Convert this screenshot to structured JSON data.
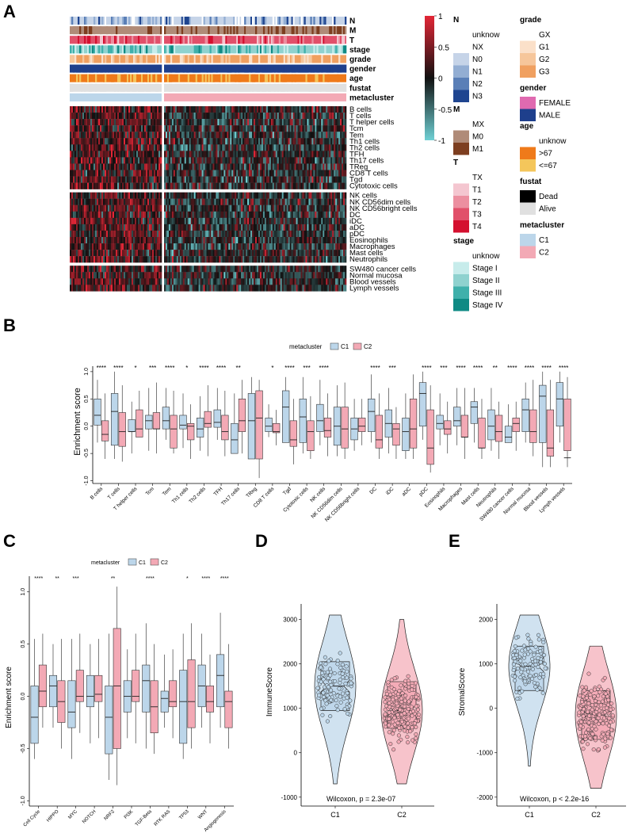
{
  "panels": {
    "A": {
      "label": "A",
      "annotation_tracks": [
        "N",
        "M",
        "T",
        "stage",
        "grade",
        "gender",
        "age",
        "fustat",
        "metacluster"
      ],
      "row_groups": [
        [
          "B cells",
          "T cells",
          "T helper cells",
          "Tcm",
          "Tem",
          "Th1 cells",
          "Th2 cells",
          "TFH",
          "Th17 cells",
          "TReg",
          "CD8 T cells",
          "Tgd",
          "Cytotoxic cells"
        ],
        [
          "NK cells",
          "NK CD56dim cells",
          "NK CD56bright cells",
          "DC",
          "iDC",
          "aDC",
          "pDC",
          "Eosinophils",
          "Macrophages",
          "Mast cells",
          "Neutrophils"
        ],
        [
          "SW480 cancer cells",
          "Normal mucosa",
          "Blood vessels",
          "Lymph vessels"
        ]
      ],
      "colorbar": {
        "ticks": [
          "1",
          "0.5",
          "0",
          "-0.5",
          "-1"
        ],
        "high": "#e32636",
        "mid": "#111111",
        "low": "#6fd0d4"
      },
      "legend_col1": [
        {
          "title": "N",
          "items": [
            {
              "label": "unknow",
              "color": "#ffffff"
            },
            {
              "label": "NX",
              "color": "#ffffff"
            },
            {
              "label": "N0",
              "color": "#c6d4e8"
            },
            {
              "label": "N1",
              "color": "#93aed3"
            },
            {
              "label": "N2",
              "color": "#5a7fb7"
            },
            {
              "label": "N3",
              "color": "#1f4590"
            }
          ]
        },
        {
          "title": "M",
          "items": [
            {
              "label": "MX",
              "color": "#ffffff"
            },
            {
              "label": "M0",
              "color": "#b08b78"
            },
            {
              "label": "M1",
              "color": "#7d3e20"
            }
          ]
        },
        {
          "title": "T",
          "items": [
            {
              "label": "TX",
              "color": "#ffffff"
            },
            {
              "label": "T1",
              "color": "#f4c6d0"
            },
            {
              "label": "T2",
              "color": "#ec8fa0"
            },
            {
              "label": "T3",
              "color": "#e1506a"
            },
            {
              "label": "T4",
              "color": "#d4102f"
            }
          ]
        },
        {
          "title": "stage",
          "items": [
            {
              "label": "unknow",
              "color": "#ffffff"
            },
            {
              "label": "Stage I",
              "color": "#c7eceb"
            },
            {
              "label": "Stage II",
              "color": "#8fd2cf"
            },
            {
              "label": "Stage III",
              "color": "#3fb0ab"
            },
            {
              "label": "Stage IV",
              "color": "#0f8a84"
            }
          ]
        }
      ],
      "legend_col2": [
        {
          "title": "grade",
          "items": [
            {
              "label": "GX",
              "color": "#ffffff"
            },
            {
              "label": "G1",
              "color": "#fbe0c9"
            },
            {
              "label": "G2",
              "color": "#f6c69b"
            },
            {
              "label": "G3",
              "color": "#f0a060"
            }
          ]
        },
        {
          "title": "gender",
          "items": [
            {
              "label": "FEMALE",
              "color": "#e06ab0"
            },
            {
              "label": "MALE",
              "color": "#1e3f8c"
            }
          ]
        },
        {
          "title": "age",
          "items": [
            {
              "label": "unknow",
              "color": "#ffffff"
            },
            {
              "label": ">67",
              "color": "#ef7a1a"
            },
            {
              "label": "<=67",
              "color": "#f4c65b"
            }
          ]
        },
        {
          "title": "fustat",
          "items": [
            {
              "label": "Dead",
              "color": "#000000"
            },
            {
              "label": "Alive",
              "color": "#e0e0e0"
            }
          ]
        },
        {
          "title": "metacluster",
          "items": [
            {
              "label": "C1",
              "color": "#bcd6ea"
            },
            {
              "label": "C2",
              "color": "#f3a9b5"
            }
          ]
        }
      ]
    },
    "B": {
      "label": "B",
      "legend_title": "metacluster",
      "legend_c1": "C1",
      "legend_c2": "C2",
      "ylabel": "Enrichment score"
    },
    "C": {
      "label": "C",
      "legend_title": "metacluster",
      "legend_c1": "C1",
      "legend_c2": "C2",
      "ylabel": "Enrichment score"
    },
    "D": {
      "label": "D",
      "ylabel": "ImmuneScore",
      "stat": "Wilcoxon, p = 2.3e-07"
    },
    "E": {
      "label": "E",
      "ylabel": "StromalScore",
      "stat": "Wilcoxon, p < 2.2e-16"
    }
  },
  "chart_data": [
    {
      "type": "box",
      "panel": "B",
      "ylabel": "Enrichment score",
      "ylim": [
        -1.05,
        1.1
      ],
      "yticks": [
        -1.0,
        -0.5,
        0.0,
        0.5,
        1.0
      ],
      "series_names": [
        "C1",
        "C2"
      ],
      "series_colors": [
        "#bcd6ea",
        "#f3a9b5"
      ],
      "categories": [
        "B cells",
        "T cells",
        "T helper cells",
        "Tcm",
        "Tem",
        "Th1 cells",
        "Th2 cells",
        "TFH",
        "Th17 cells",
        "TReg",
        "CD8 T cells",
        "Tgd",
        "Cytotoxic cells",
        "NK cells",
        "NK CD56dim cells",
        "NK CD56bright cells",
        "DC",
        "iDC",
        "aDC",
        "pDC",
        "Eosinophils",
        "Macrophages",
        "Mast cells",
        "Neutrophils",
        "SW480 cancer cells",
        "Normal mucosa",
        "Blood vessels",
        "Lymph vessels"
      ],
      "significance": [
        "****",
        "****",
        "*",
        "***",
        "****",
        "*",
        "****",
        "****",
        "**",
        "",
        "*",
        "****",
        "***",
        "****",
        "",
        "",
        "****",
        "***",
        "",
        "****",
        "***",
        "****",
        "****",
        "**",
        "****",
        "****",
        "****",
        "****"
      ],
      "boxes": [
        [
          [
            -0.3,
            0.02,
            0.2,
            0.5,
            0.85
          ],
          [
            -0.6,
            -0.27,
            -0.15,
            0.1,
            0.6
          ]
        ],
        [
          [
            -0.6,
            -0.35,
            0.27,
            0.6,
            1.0
          ],
          [
            -0.65,
            -0.37,
            -0.1,
            0.25,
            0.75
          ]
        ],
        [
          [
            -0.5,
            -0.1,
            -0.1,
            0.12,
            0.45
          ],
          [
            -0.2,
            -0.2,
            -0.05,
            0.3,
            0.65
          ]
        ],
        [
          [
            -0.45,
            -0.05,
            0.1,
            0.2,
            0.7
          ],
          [
            -0.5,
            -0.05,
            -0.05,
            0.25,
            0.8
          ]
        ],
        [
          [
            -0.25,
            -0.05,
            0.1,
            0.35,
            0.7
          ],
          [
            -0.5,
            -0.4,
            -0.05,
            0.2,
            0.65
          ]
        ],
        [
          [
            -0.4,
            -0.05,
            0.02,
            0.2,
            0.6
          ],
          [
            -0.6,
            -0.25,
            0.0,
            0.05,
            0.4
          ]
        ],
        [
          [
            -0.45,
            -0.2,
            -0.05,
            0.15,
            0.55
          ],
          [
            -0.55,
            -0.02,
            0.05,
            0.27,
            0.75
          ]
        ],
        [
          [
            -0.25,
            -0.02,
            0.07,
            0.3,
            0.7
          ],
          [
            -0.55,
            -0.25,
            -0.1,
            0.2,
            0.65
          ]
        ],
        [
          [
            -0.5,
            -0.5,
            -0.25,
            0.05,
            0.6
          ],
          [
            -0.5,
            -0.1,
            0.1,
            0.5,
            0.85
          ]
        ],
        [
          [
            -0.6,
            -0.6,
            0.1,
            0.6,
            0.9
          ],
          [
            -0.95,
            -0.6,
            0.15,
            0.65,
            0.85
          ]
        ],
        [
          [
            -0.2,
            -0.1,
            0.0,
            0.15,
            0.4
          ],
          [
            -0.35,
            -0.12,
            -0.1,
            0.05,
            0.3
          ]
        ],
        [
          [
            -0.3,
            -0.3,
            0.35,
            0.65,
            0.9
          ],
          [
            -0.7,
            -0.37,
            -0.25,
            0.1,
            0.5
          ]
        ],
        [
          [
            -0.5,
            -0.3,
            0.17,
            0.5,
            0.9
          ],
          [
            -0.6,
            -0.45,
            -0.1,
            0.1,
            0.55
          ]
        ],
        [
          [
            -0.35,
            -0.1,
            0.1,
            0.4,
            0.85
          ],
          [
            -0.55,
            -0.2,
            -0.08,
            0.15,
            0.6
          ]
        ],
        [
          [
            -0.55,
            -0.35,
            0.0,
            0.35,
            0.75
          ],
          [
            -0.6,
            -0.4,
            -0.05,
            0.35,
            0.8
          ]
        ],
        [
          [
            -0.45,
            -0.25,
            -0.05,
            0.15,
            0.5
          ],
          [
            -0.35,
            -0.1,
            0.0,
            0.15,
            0.5
          ]
        ],
        [
          [
            -0.3,
            -0.1,
            0.27,
            0.5,
            0.95
          ],
          [
            -0.6,
            -0.4,
            -0.25,
            0.2,
            0.6
          ]
        ],
        [
          [
            -0.5,
            -0.2,
            0.05,
            0.3,
            0.7
          ],
          [
            -0.6,
            -0.35,
            -0.05,
            0.05,
            0.35
          ]
        ],
        [
          [
            -0.6,
            -0.45,
            -0.1,
            0.15,
            0.6
          ],
          [
            -0.6,
            -0.4,
            -0.05,
            0.5,
            0.95
          ]
        ],
        [
          [
            -0.25,
            0.0,
            0.6,
            0.8,
            1.0
          ],
          [
            -0.85,
            -0.7,
            -0.4,
            0.3,
            0.75
          ]
        ],
        [
          [
            -0.35,
            -0.05,
            0.05,
            0.2,
            0.6
          ],
          [
            -0.5,
            -0.15,
            -0.05,
            0.1,
            0.45
          ]
        ],
        [
          [
            -0.35,
            0.0,
            0.1,
            0.35,
            0.7
          ],
          [
            -0.6,
            -0.2,
            -0.2,
            0.2,
            0.7
          ]
        ],
        [
          [
            -0.3,
            0.05,
            0.35,
            0.45,
            0.7
          ],
          [
            -0.6,
            -0.4,
            -0.4,
            0.15,
            0.5
          ]
        ],
        [
          [
            -0.45,
            -0.25,
            0.0,
            0.3,
            0.7
          ],
          [
            -0.6,
            -0.28,
            -0.1,
            0.2,
            0.45
          ]
        ],
        [
          [
            -0.3,
            -0.3,
            -0.2,
            0.0,
            0.4
          ],
          [
            -0.45,
            -0.1,
            0.05,
            0.15,
            0.45
          ]
        ],
        [
          [
            -0.3,
            -0.1,
            0.3,
            0.5,
            0.8
          ],
          [
            -0.55,
            -0.3,
            -0.1,
            0.3,
            0.85
          ]
        ],
        [
          [
            -0.75,
            -0.3,
            0.55,
            0.75,
            1.0
          ],
          [
            -0.75,
            -0.55,
            -0.4,
            0.3,
            0.85
          ]
        ],
        [
          [
            -0.3,
            0.0,
            0.5,
            0.8,
            1.0
          ],
          [
            -0.75,
            -0.45,
            -0.58,
            0.5,
            0.9
          ]
        ]
      ]
    },
    {
      "type": "box",
      "panel": "C",
      "ylabel": "Enrichment score",
      "ylim": [
        -1.05,
        1.15
      ],
      "yticks": [
        -1.0,
        -0.5,
        0.0,
        0.5,
        1.0
      ],
      "series_names": [
        "C1",
        "C2"
      ],
      "series_colors": [
        "#bcd6ea",
        "#f3a9b5"
      ],
      "categories": [
        "Cell Cycle",
        "HIPPO",
        "MYC",
        "NOTCH",
        "NRF2",
        "PI3K",
        "TGF-Beta",
        "RTK RAS",
        "TP53",
        "WNT",
        "Angiogenesis"
      ],
      "significance": [
        "****",
        "**",
        "***",
        "",
        "**",
        "",
        "****",
        "",
        "*",
        "****",
        "****"
      ],
      "boxes": [
        [
          [
            -0.6,
            -0.45,
            -0.2,
            0.1,
            0.55
          ],
          [
            -0.3,
            -0.1,
            0.05,
            0.3,
            0.6
          ]
        ],
        [
          [
            -0.3,
            -0.1,
            0.1,
            0.2,
            0.5
          ],
          [
            -0.5,
            -0.25,
            -0.05,
            0.15,
            0.55
          ]
        ],
        [
          [
            -0.6,
            -0.3,
            -0.15,
            0.15,
            0.55
          ],
          [
            -0.35,
            -0.05,
            0.0,
            0.25,
            0.6
          ]
        ],
        [
          [
            -0.45,
            -0.1,
            0.0,
            0.2,
            0.5
          ],
          [
            -0.4,
            -0.05,
            0.02,
            0.2,
            0.55
          ]
        ],
        [
          [
            -0.8,
            -0.55,
            -0.2,
            0.1,
            0.6
          ],
          [
            -0.85,
            -0.5,
            0.1,
            0.65,
            1.05
          ]
        ],
        [
          [
            -0.4,
            -0.15,
            0.0,
            0.15,
            0.45
          ],
          [
            -0.45,
            -0.05,
            0.0,
            0.25,
            0.6
          ]
        ],
        [
          [
            -0.5,
            -0.15,
            0.15,
            0.3,
            0.7
          ],
          [
            -0.55,
            -0.35,
            -0.1,
            0.15,
            0.5
          ]
        ],
        [
          [
            -0.3,
            -0.15,
            -0.02,
            0.05,
            0.4
          ],
          [
            -0.4,
            -0.1,
            -0.05,
            0.15,
            0.45
          ]
        ],
        [
          [
            -0.6,
            -0.45,
            -0.05,
            0.25,
            0.6
          ],
          [
            -0.5,
            -0.3,
            -0.05,
            0.35,
            0.7
          ]
        ],
        [
          [
            -0.3,
            -0.1,
            0.1,
            0.3,
            0.6
          ],
          [
            -0.45,
            -0.15,
            -0.05,
            0.1,
            0.4
          ]
        ],
        [
          [
            -0.3,
            -0.1,
            0.2,
            0.4,
            0.8
          ],
          [
            -0.5,
            -0.3,
            -0.05,
            0.05,
            0.5
          ]
        ]
      ]
    },
    {
      "type": "violin",
      "panel": "D",
      "ylabel": "ImmuneScore",
      "categories": [
        "C1",
        "C2"
      ],
      "ylim": [
        -1200,
        3350
      ],
      "yticks": [
        -1000,
        0,
        1000,
        2000,
        3000
      ],
      "boxes": [
        [
          -700,
          950,
          1500,
          2050,
          3100
        ],
        [
          -700,
          550,
          950,
          1600,
          3000
        ]
      ],
      "stat": "Wilcoxon, p = 2.3e-07"
    },
    {
      "type": "violin",
      "panel": "E",
      "ylabel": "StromalScore",
      "categories": [
        "C1",
        "C2"
      ],
      "ylim": [
        -2200,
        2350
      ],
      "yticks": [
        -2000,
        -1000,
        0,
        1000,
        2000
      ],
      "boxes": [
        [
          -1300,
          400,
          950,
          1400,
          2100
        ],
        [
          -1800,
          -700,
          -150,
          400,
          1400
        ]
      ],
      "stat": "Wilcoxon, p < 2.2e-16"
    }
  ]
}
